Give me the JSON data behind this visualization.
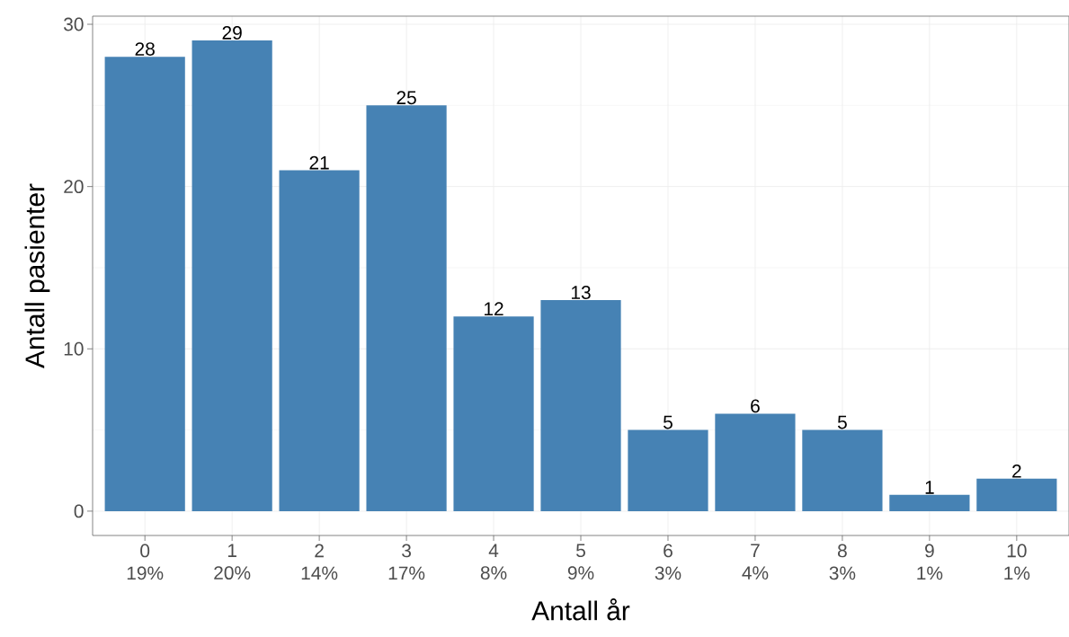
{
  "chart_data": {
    "type": "bar",
    "xlabel": "Antall år",
    "ylabel": "Antall pasienter",
    "categories": [
      "0 19%",
      "1 20%",
      "2 14%",
      "3 17%",
      "4 8%",
      "5 9%",
      "6 3%",
      "7 4%",
      "8 3%",
      "9 1%",
      "10 1%"
    ],
    "values": [
      28,
      29,
      21,
      25,
      12,
      13,
      5,
      6,
      5,
      1,
      2
    ],
    "color": "#4682b4",
    "ylim": [
      -1.5,
      30.5
    ],
    "yticks": [
      0,
      10,
      20,
      30
    ],
    "grid": true,
    "data_labels": true
  }
}
